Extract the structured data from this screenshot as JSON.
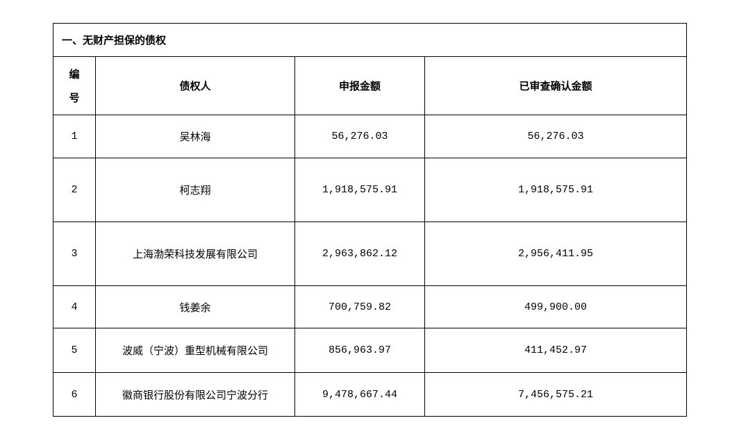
{
  "section_title": "一、无财产担保的债权",
  "columns": {
    "index_line1": "编",
    "index_line2": "号",
    "creditor": "债权人",
    "declared": "申报金额",
    "confirmed": "已审查确认金额"
  },
  "rows": [
    {
      "no": "1",
      "creditor": "吴林海",
      "declared": "56,276.03",
      "confirmed": "56,276.03"
    },
    {
      "no": "2",
      "creditor": "柯志翔",
      "declared": "1,918,575.91",
      "confirmed": "1,918,575.91"
    },
    {
      "no": "3",
      "creditor": "上海渤荣科技发展有限公司",
      "declared": "2,963,862.12",
      "confirmed": "2,956,411.95"
    },
    {
      "no": "4",
      "creditor": "钱姜余",
      "declared": "700,759.82",
      "confirmed": "499,900.00"
    },
    {
      "no": "5",
      "creditor": "波威（宁波）重型机械有限公司",
      "declared": "856,963.97",
      "confirmed": "411,452.97"
    },
    {
      "no": "6",
      "creditor": "徽商银行股份有限公司宁波分行",
      "declared": "9,478,667.44",
      "confirmed": "7,456,575.21"
    }
  ]
}
